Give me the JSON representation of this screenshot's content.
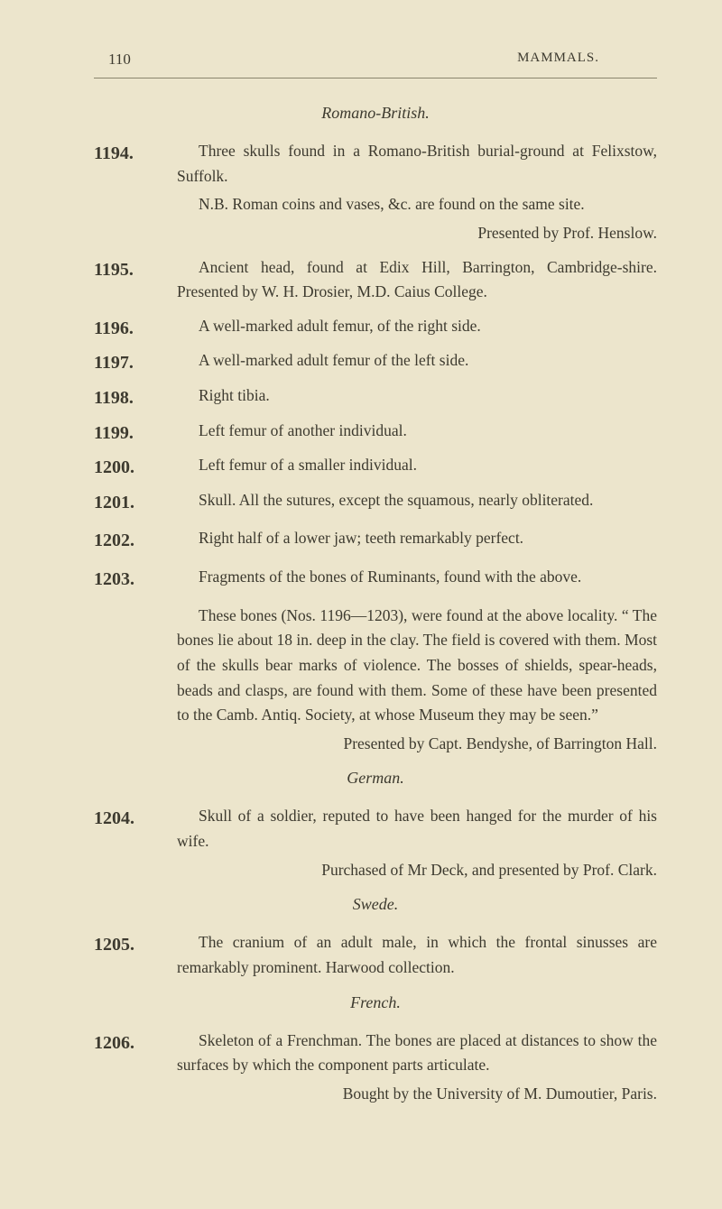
{
  "header": {
    "page_number": "110",
    "running_head": "MAMMALS."
  },
  "sections": {
    "romano": "Romano-British.",
    "german": "German.",
    "swede": "Swede.",
    "french": "French."
  },
  "entries": {
    "e1194": {
      "num": "1194.",
      "line1": "Three skulls found in a Romano-British burial-ground at Felixstow, Suffolk.",
      "line2": "N.B.  Roman coins and vases, &c. are found on the same site.",
      "right": "Presented by Prof. Henslow."
    },
    "e1195": {
      "num": "1195.",
      "line1": "Ancient head, found at Edix Hill, Barrington, Cambridge-shire.  Presented by W. H. Drosier, M.D. Caius College."
    },
    "e1196": {
      "num": "1196.",
      "line1": "A well-marked adult femur, of the right side."
    },
    "e1197": {
      "num": "1197.",
      "line1": "A well-marked adult femur of the left side."
    },
    "e1198": {
      "num": "1198.",
      "line1": "Right tibia."
    },
    "e1199": {
      "num": "1199.",
      "line1": "Left femur of another individual."
    },
    "e1200": {
      "num": "1200.",
      "line1": "Left femur of a smaller individual."
    },
    "e1201": {
      "num": "1201.",
      "line1": "Skull.  All the sutures, except the squamous, nearly obliterated."
    },
    "e1202": {
      "num": "1202.",
      "line1": "Right half of a lower jaw; teeth remarkably perfect."
    },
    "e1203": {
      "num": "1203.",
      "line1": "Fragments of the bones of Ruminants, found with the above."
    },
    "para1203": {
      "p1": "These bones (Nos. 1196—1203), were found at the above locality.  “ The bones lie about 18 in. deep in the clay.  The field is covered with them.  Most of the skulls bear marks of violence.  The bosses of shields, spear-heads, beads and clasps, are found with them.  Some of these have been presented to the Camb. Antiq. Society, at whose Museum they may be seen.”",
      "right": "Presented by Capt. Bendyshe, of Barrington Hall."
    },
    "e1204": {
      "num": "1204.",
      "line1": "Skull of a soldier, reputed to have been hanged for the murder of his wife.",
      "right": "Purchased of Mr Deck, and presented by Prof. Clark."
    },
    "e1205": {
      "num": "1205.",
      "line1": "The cranium of an adult male, in which the frontal sinusses are remarkably prominent.  Harwood collection."
    },
    "e1206": {
      "num": "1206.",
      "line1": "Skeleton of a Frenchman.  The bones are placed at distances to show the surfaces by which the component parts articulate.",
      "right": "Bought by the University of M. Dumoutier, Paris."
    }
  }
}
